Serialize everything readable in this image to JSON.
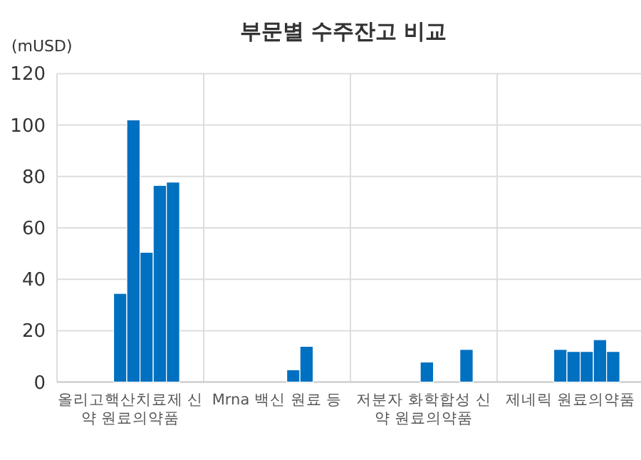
{
  "chart_data": {
    "type": "bar",
    "title": "부문별 수주잔고 비교",
    "ylabel": "(mUSD)",
    "categories": [
      "올리고핵산치료제 신약 원료의약품",
      "Mrna 백신 원료 등",
      "저분자 화학합성 신약 원료의약품",
      "제네릭 원료의약품"
    ],
    "series": [
      {
        "color": "#0070c0",
        "values": [
          34.5,
          null,
          null,
          12.7
        ]
      },
      {
        "color": "#0070c0",
        "values": [
          102,
          null,
          7.8,
          11.9
        ]
      },
      {
        "color": "#0070c0",
        "values": [
          50.5,
          4.8,
          null,
          11.9
        ]
      },
      {
        "color": "#0070c0",
        "values": [
          76.5,
          13.9,
          null,
          16.5
        ]
      },
      {
        "color": "#0070c0",
        "values": [
          77.8,
          null,
          12.7,
          11.9
        ]
      }
    ],
    "ylim": [
      0,
      120
    ],
    "yticks": [
      0,
      20,
      40,
      60,
      80,
      100,
      120
    ],
    "grid": true
  }
}
